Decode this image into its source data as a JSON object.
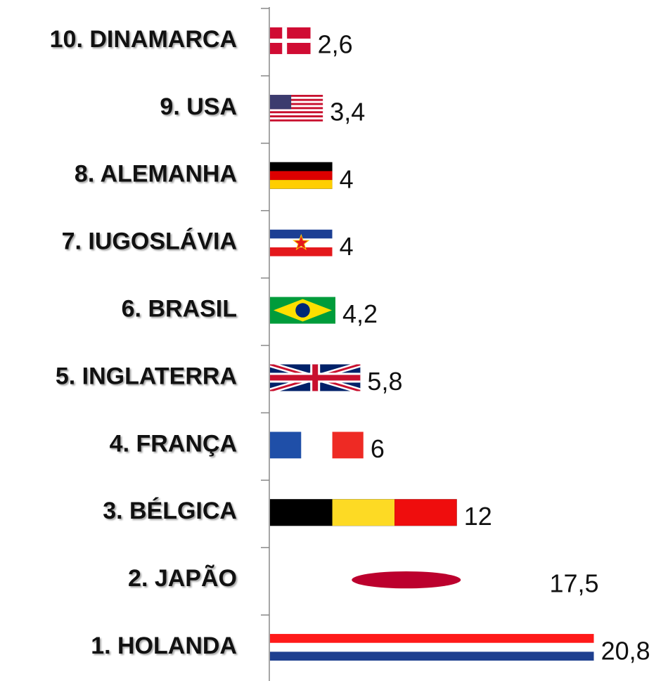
{
  "chart_data": {
    "type": "bar",
    "orientation": "horizontal",
    "categories": [
      "10. DINAMARCA",
      "9. USA",
      "8. ALEMANHA",
      "7. IUGOSLÁVIA",
      "6. BRASIL",
      "5. INGLATERRA",
      "4. FRANÇA",
      "3. BÉLGICA",
      "2. JAPÃO",
      "1. HOLANDA"
    ],
    "values": [
      2.6,
      3.4,
      4,
      4,
      4.2,
      5.8,
      6,
      12,
      17.5,
      20.8
    ],
    "value_labels": [
      "2,6",
      "3,4",
      "4",
      "4",
      "4,2",
      "5,8",
      "6",
      "12",
      "17,5",
      "20,8"
    ],
    "xlim": [
      0,
      21
    ]
  }
}
